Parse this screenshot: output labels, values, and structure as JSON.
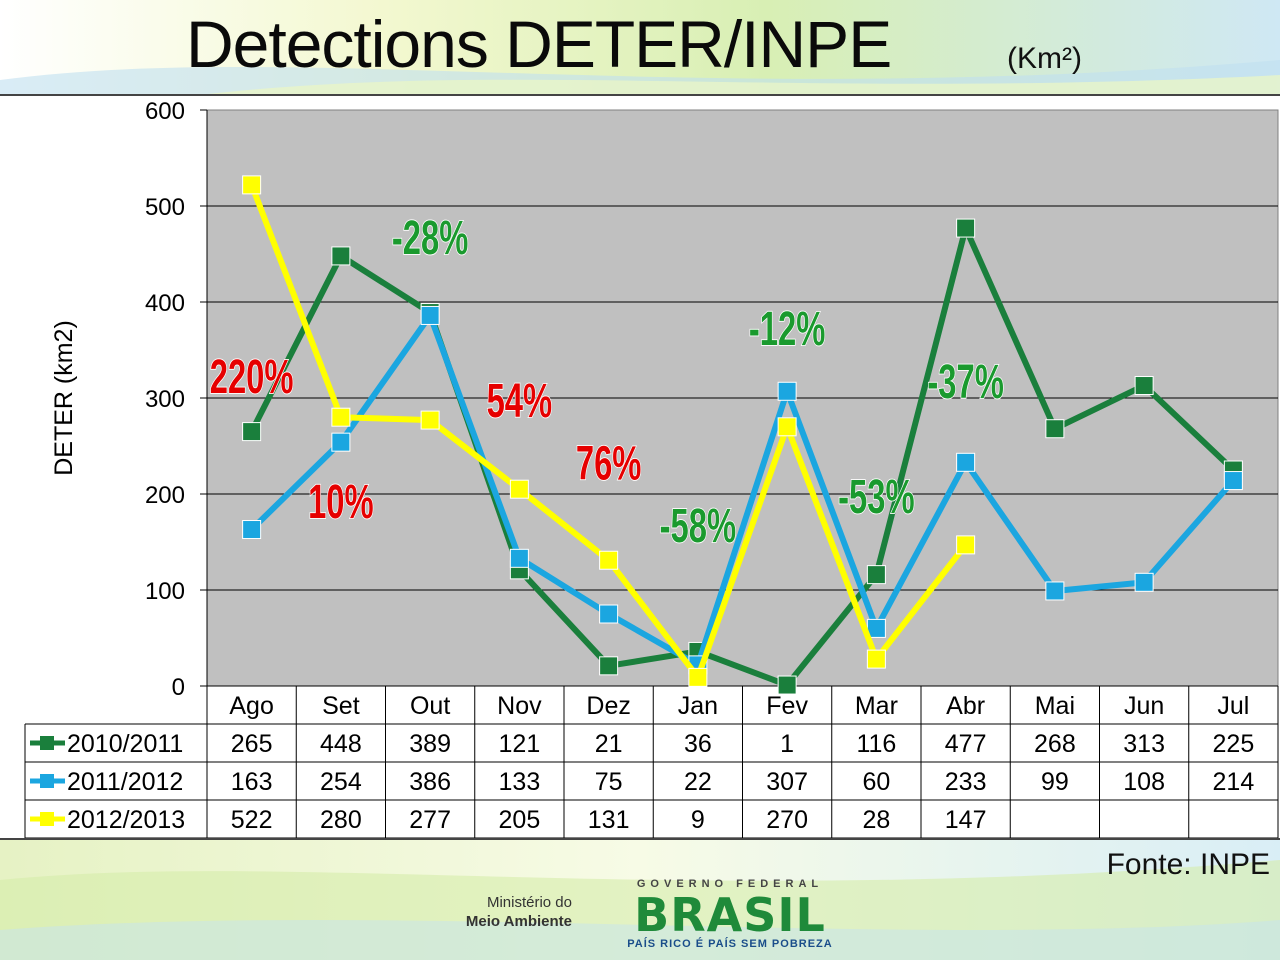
{
  "header": {
    "title": "Detections DETER/INPE",
    "subtitle": "(Km²)"
  },
  "source": "Fonte: INPE",
  "footer": {
    "ministry_line1": "Ministério do",
    "ministry_line2": "Meio Ambiente",
    "gov_top": "GOVERNO FEDERAL",
    "gov_name": "BRASIL",
    "gov_slogan": "PAÍS RICO É PAÍS SEM POBREZA"
  },
  "chart_data": {
    "type": "line",
    "title": "Detections DETER/INPE",
    "ylabel": "DETER (km2)",
    "ylim": [
      0,
      600
    ],
    "yticks": [
      0,
      100,
      200,
      300,
      400,
      500,
      600
    ],
    "grid": true,
    "categories": [
      "Ago",
      "Set",
      "Out",
      "Nov",
      "Dez",
      "Jan",
      "Fev",
      "Mar",
      "Abr",
      "Mai",
      "Jun",
      "Jul"
    ],
    "series": [
      {
        "name": "2010/2011",
        "color": "#1a7f3c",
        "values": [
          265,
          448,
          389,
          121,
          21,
          36,
          1,
          116,
          477,
          268,
          313,
          225
        ]
      },
      {
        "name": "2011/2012",
        "color": "#1ba6e0",
        "values": [
          163,
          254,
          386,
          133,
          75,
          22,
          307,
          60,
          233,
          99,
          108,
          214
        ]
      },
      {
        "name": "2012/2013",
        "color": "#ffff00",
        "values": [
          522,
          280,
          277,
          205,
          131,
          9,
          270,
          28,
          147,
          null,
          null,
          null
        ]
      }
    ],
    "table_rows": [
      [
        "265",
        "448",
        "389",
        "121",
        "21",
        "36",
        "1",
        "116",
        "477",
        "268",
        "313",
        "225"
      ],
      [
        "163",
        "254",
        "386",
        "133",
        "75",
        "22",
        "307",
        "60",
        "233",
        "99",
        "108",
        "214"
      ],
      [
        "522",
        "280",
        "277",
        "205",
        "131",
        "9",
        "270",
        "28",
        "147",
        "",
        "",
        ""
      ]
    ],
    "annotations": [
      {
        "text": "220%",
        "color": "#e60000",
        "x": "Ago",
        "y": 305
      },
      {
        "text": "10%",
        "color": "#e60000",
        "x": "Set",
        "y": 175
      },
      {
        "text": "-28%",
        "color": "#1a9a2e",
        "x": "Out",
        "y": 450
      },
      {
        "text": "54%",
        "color": "#e60000",
        "x": "Nov",
        "y": 280
      },
      {
        "text": "76%",
        "color": "#e60000",
        "x": "Dez",
        "y": 215
      },
      {
        "text": "-58%",
        "color": "#1a9a2e",
        "x": "Jan",
        "y": 150
      },
      {
        "text": "-12%",
        "color": "#1a9a2e",
        "x": "Fev",
        "y": 355
      },
      {
        "text": "-53%",
        "color": "#1a9a2e",
        "x": "Mar",
        "y": 180
      },
      {
        "text": "-37%",
        "color": "#1a9a2e",
        "x": "Abr",
        "y": 300
      }
    ]
  }
}
